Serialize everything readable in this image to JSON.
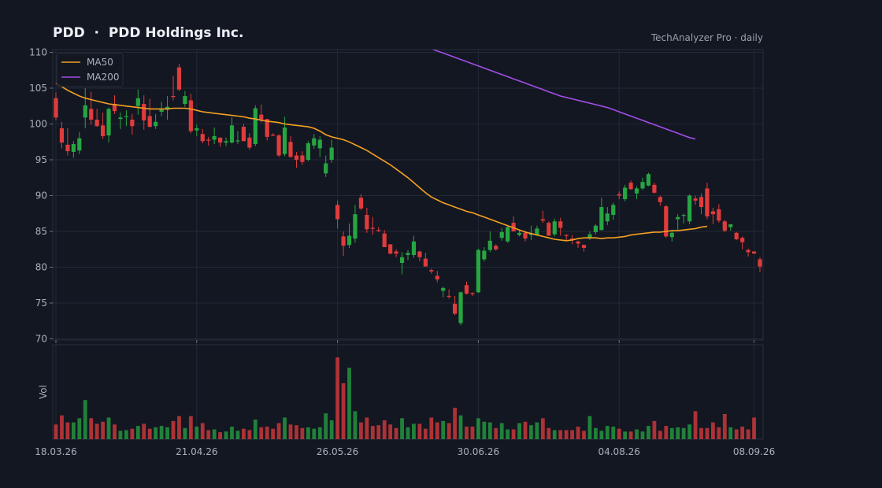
{
  "header": {
    "title": "PDD  ·  PDD Holdings Inc.",
    "source": "TechAnalyzer Pro · daily"
  },
  "chart_data": {
    "type": "candlestick",
    "ticker": "PDD",
    "company": "PDD Holdings Inc.",
    "price_ylim": [
      70,
      110
    ],
    "price_ticks": [
      70,
      75,
      80,
      85,
      90,
      95,
      100,
      105,
      110
    ],
    "x_tick_labels": [
      "18.03.26",
      "21.04.26",
      "26.05.26",
      "30.06.26",
      "04.08.26",
      "08.09.26"
    ],
    "x_tick_index": [
      0,
      24,
      48,
      72,
      96,
      119
    ],
    "volume_label": "Vol",
    "grid": true,
    "legend_position": "top-left",
    "colors": {
      "up": "#26a641",
      "down": "#e03c3c",
      "ma50": "#f5a021",
      "ma200": "#a24ee8",
      "background": "#131722",
      "grid": "#232838"
    },
    "legend": [
      {
        "name": "MA50",
        "color": "#f5a021"
      },
      {
        "name": "MA200",
        "color": "#a24ee8"
      }
    ],
    "ohlc": [
      [
        103.6,
        104.4,
        100.5,
        100.9
      ],
      [
        99.4,
        100.3,
        96.6,
        97.4
      ],
      [
        97.1,
        99.4,
        95.6,
        96.2
      ],
      [
        96.1,
        97.6,
        95.3,
        97.2
      ],
      [
        96.3,
        98.9,
        95.8,
        98.0
      ],
      [
        100.9,
        105.0,
        99.4,
        102.6
      ],
      [
        102.1,
        104.5,
        99.9,
        100.6
      ],
      [
        100.6,
        102.1,
        99.6,
        99.7
      ],
      [
        99.8,
        101.6,
        97.9,
        98.3
      ],
      [
        98.4,
        102.3,
        97.4,
        102.1
      ],
      [
        102.8,
        104.0,
        101.4,
        101.8
      ],
      [
        100.7,
        101.6,
        99.3,
        100.9
      ],
      [
        101.0,
        101.9,
        99.7,
        101.1
      ],
      [
        100.6,
        101.4,
        98.5,
        99.7
      ],
      [
        102.5,
        104.8,
        101.3,
        103.6
      ],
      [
        102.8,
        104.0,
        99.2,
        100.5
      ],
      [
        101.1,
        103.5,
        99.5,
        99.6
      ],
      [
        99.7,
        101.4,
        99.3,
        100.3
      ],
      [
        101.7,
        103.1,
        101.1,
        102.0
      ],
      [
        102.0,
        103.9,
        100.6,
        102.4
      ],
      [
        103.9,
        106.7,
        103.3,
        103.8
      ],
      [
        107.9,
        108.4,
        104.6,
        104.8
      ],
      [
        102.8,
        104.6,
        102.4,
        103.9
      ],
      [
        103.3,
        104.2,
        98.7,
        99.0
      ],
      [
        99.1,
        99.9,
        98.3,
        99.4
      ],
      [
        98.6,
        99.3,
        97.3,
        97.6
      ],
      [
        97.8,
        98.2,
        97.0,
        97.7
      ],
      [
        97.8,
        99.5,
        97.2,
        98.3
      ],
      [
        98.1,
        98.1,
        96.8,
        97.4
      ],
      [
        97.4,
        98.1,
        96.9,
        97.6
      ],
      [
        97.4,
        100.9,
        97.3,
        99.8
      ],
      [
        97.7,
        99.0,
        97.2,
        97.7
      ],
      [
        99.6,
        100.0,
        97.6,
        97.6
      ],
      [
        98.1,
        98.7,
        96.4,
        96.7
      ],
      [
        97.2,
        102.6,
        96.9,
        102.2
      ],
      [
        101.3,
        102.7,
        100.2,
        100.6
      ],
      [
        100.7,
        100.7,
        97.7,
        98.2
      ],
      [
        98.5,
        98.7,
        98.3,
        98.4
      ],
      [
        98.4,
        98.6,
        95.4,
        95.6
      ],
      [
        95.8,
        101.0,
        95.5,
        99.5
      ],
      [
        97.5,
        98.3,
        95.3,
        95.4
      ],
      [
        95.6,
        96.1,
        93.9,
        95.0
      ],
      [
        95.6,
        96.2,
        94.3,
        94.7
      ],
      [
        95.0,
        97.6,
        94.8,
        97.3
      ],
      [
        97.0,
        98.6,
        96.5,
        98.0
      ],
      [
        96.6,
        98.3,
        95.4,
        97.8
      ],
      [
        93.1,
        95.6,
        92.6,
        94.5
      ],
      [
        95.0,
        97.8,
        94.6,
        96.7
      ],
      [
        88.7,
        89.3,
        85.4,
        86.7
      ],
      [
        84.3,
        85.0,
        81.6,
        83.0
      ],
      [
        83.1,
        86.1,
        82.7,
        84.4
      ],
      [
        84.0,
        88.7,
        83.4,
        87.4
      ],
      [
        89.7,
        90.2,
        88.0,
        88.2
      ],
      [
        87.3,
        88.3,
        84.8,
        85.3
      ],
      [
        85.5,
        87.0,
        84.5,
        85.4
      ],
      [
        85.2,
        85.6,
        84.9,
        85.1
      ],
      [
        84.7,
        85.2,
        82.8,
        82.8
      ],
      [
        83.2,
        83.2,
        81.8,
        81.9
      ],
      [
        82.2,
        82.5,
        81.4,
        81.9
      ],
      [
        80.6,
        82.1,
        79.0,
        81.4
      ],
      [
        81.7,
        82.4,
        81.0,
        82.0
      ],
      [
        81.7,
        84.4,
        81.3,
        83.6
      ],
      [
        82.2,
        82.3,
        80.8,
        81.4
      ],
      [
        81.2,
        82.0,
        80.1,
        80.1
      ],
      [
        79.6,
        79.8,
        79.1,
        79.4
      ],
      [
        78.8,
        79.5,
        77.9,
        78.3
      ],
      [
        76.7,
        77.3,
        75.8,
        77.1
      ],
      [
        76.0,
        76.9,
        75.6,
        75.9
      ],
      [
        74.9,
        76.0,
        73.3,
        73.5
      ],
      [
        72.2,
        76.6,
        71.9,
        76.5
      ],
      [
        77.5,
        78.0,
        76.2,
        76.3
      ],
      [
        76.4,
        76.5,
        76.0,
        76.3
      ],
      [
        76.5,
        82.6,
        76.4,
        82.4
      ],
      [
        81.1,
        82.8,
        80.8,
        82.3
      ],
      [
        82.4,
        85.0,
        82.1,
        83.7
      ],
      [
        83.0,
        83.2,
        82.3,
        82.5
      ],
      [
        84.1,
        85.5,
        83.7,
        84.9
      ],
      [
        83.6,
        85.7,
        83.4,
        85.6
      ],
      [
        86.2,
        87.1,
        85.3,
        85.0
      ],
      [
        84.5,
        85.1,
        84.3,
        84.8
      ],
      [
        84.8,
        85.1,
        83.6,
        84.0
      ],
      [
        84.5,
        85.8,
        83.8,
        84.7
      ],
      [
        84.5,
        85.8,
        84.4,
        85.4
      ],
      [
        86.7,
        87.9,
        86.2,
        86.5
      ],
      [
        86.2,
        86.4,
        84.6,
        84.4
      ],
      [
        84.6,
        86.8,
        84.3,
        86.4
      ],
      [
        86.4,
        86.9,
        84.4,
        85.5
      ],
      [
        84.5,
        84.6,
        83.6,
        84.4
      ],
      [
        84.0,
        84.5,
        83.2,
        83.8
      ],
      [
        83.6,
        83.7,
        82.7,
        83.3
      ],
      [
        83.1,
        83.2,
        82.2,
        82.7
      ],
      [
        84.0,
        85.0,
        83.8,
        84.6
      ],
      [
        84.9,
        86.0,
        84.6,
        85.8
      ],
      [
        85.2,
        89.7,
        85.1,
        88.4
      ],
      [
        86.4,
        88.4,
        85.9,
        87.5
      ],
      [
        87.3,
        89.0,
        86.6,
        88.7
      ],
      [
        90.2,
        90.6,
        89.5,
        90.0
      ],
      [
        89.5,
        91.5,
        89.2,
        91.1
      ],
      [
        91.8,
        92.1,
        90.8,
        90.9
      ],
      [
        90.3,
        91.3,
        89.5,
        91.0
      ],
      [
        91.0,
        92.5,
        90.8,
        91.9
      ],
      [
        91.4,
        93.2,
        91.3,
        93.0
      ],
      [
        91.5,
        91.8,
        90.3,
        90.4
      ],
      [
        89.8,
        90.0,
        88.6,
        89.1
      ],
      [
        88.5,
        88.7,
        84.1,
        84.3
      ],
      [
        84.2,
        85.1,
        83.6,
        84.8
      ],
      [
        86.7,
        87.4,
        85.2,
        87.0
      ],
      [
        87.2,
        87.5,
        86.1,
        87.3
      ],
      [
        86.4,
        90.2,
        86.0,
        90.0
      ],
      [
        89.6,
        90.0,
        88.7,
        89.3
      ],
      [
        89.8,
        90.3,
        87.4,
        88.4
      ],
      [
        91.0,
        91.8,
        86.7,
        87.1
      ],
      [
        87.8,
        88.3,
        86.0,
        87.4
      ],
      [
        88.1,
        88.8,
        86.2,
        86.5
      ],
      [
        86.4,
        86.6,
        84.9,
        85.1
      ],
      [
        85.6,
        86.0,
        85.1,
        86.0
      ],
      [
        84.8,
        84.9,
        83.8,
        83.9
      ],
      [
        84.1,
        84.3,
        82.5,
        83.5
      ],
      [
        82.4,
        82.6,
        81.5,
        82.1
      ],
      [
        82.2,
        82.2,
        81.9,
        81.9
      ],
      [
        81.1,
        81.4,
        79.3,
        80.1
      ]
    ],
    "ma50": [
      105.7,
      105.2,
      104.7,
      104.3,
      103.9,
      103.6,
      103.4,
      103.2,
      103.0,
      102.8,
      102.7,
      102.6,
      102.5,
      102.4,
      102.3,
      102.2,
      102.1,
      102.1,
      102.1,
      102.1,
      102.2,
      102.2,
      102.2,
      102.1,
      101.9,
      101.7,
      101.6,
      101.5,
      101.4,
      101.3,
      101.2,
      101.1,
      101.0,
      100.8,
      100.7,
      100.5,
      100.4,
      100.3,
      100.2,
      100.0,
      99.9,
      99.8,
      99.7,
      99.6,
      99.4,
      99.0,
      98.5,
      98.2,
      98.0,
      97.8,
      97.5,
      97.1,
      96.7,
      96.3,
      95.8,
      95.3,
      94.8,
      94.3,
      93.7,
      93.1,
      92.5,
      91.8,
      91.1,
      90.4,
      89.8,
      89.4,
      89.0,
      88.7,
      88.4,
      88.1,
      87.8,
      87.6,
      87.3,
      87.0,
      86.7,
      86.4,
      86.1,
      85.8,
      85.5,
      85.2,
      84.9,
      84.7,
      84.5,
      84.3,
      84.1,
      83.9,
      83.8,
      83.7,
      83.8,
      84.0,
      84.1,
      84.1,
      84.1,
      84.0,
      84.1,
      84.1,
      84.2,
      84.3,
      84.5,
      84.6,
      84.7,
      84.8,
      84.9,
      84.9,
      85.0,
      85.1,
      85.1,
      85.2,
      85.3,
      85.4,
      85.6,
      85.7
    ],
    "ma200_start_index": 63,
    "ma200": [
      110.8,
      110.5,
      110.2,
      109.9,
      109.6,
      109.3,
      109.0,
      108.7,
      108.4,
      108.1,
      107.8,
      107.5,
      107.2,
      106.9,
      106.6,
      106.3,
      106.0,
      105.7,
      105.4,
      105.1,
      104.8,
      104.5,
      104.2,
      103.9,
      103.7,
      103.5,
      103.3,
      103.1,
      102.9,
      102.7,
      102.5,
      102.3,
      102.0,
      101.7,
      101.4,
      101.1,
      100.8,
      100.5,
      100.2,
      99.9,
      99.6,
      99.3,
      99.0,
      98.7,
      98.4,
      98.1,
      97.9
    ],
    "volume": [
      2.1,
      3.4,
      2.4,
      2.4,
      3.0,
      5.6,
      3.0,
      2.2,
      2.5,
      3.1,
      2.1,
      1.2,
      1.3,
      1.5,
      1.9,
      2.2,
      1.5,
      1.7,
      1.9,
      1.7,
      2.6,
      3.3,
      1.6,
      3.3,
      1.8,
      2.3,
      1.3,
      1.4,
      1.0,
      1.1,
      1.8,
      1.2,
      1.5,
      1.3,
      2.8,
      1.7,
      1.8,
      1.5,
      2.3,
      3.1,
      2.1,
      2.0,
      1.6,
      1.7,
      1.5,
      1.7,
      3.7,
      2.7,
      11.7,
      8.0,
      10.2,
      4.0,
      2.4,
      3.1,
      1.9,
      2.0,
      2.7,
      2.1,
      1.6,
      3.0,
      1.7,
      2.2,
      2.2,
      1.5,
      3.1,
      2.4,
      2.6,
      2.3,
      4.5,
      3.4,
      1.8,
      1.8,
      3.0,
      2.5,
      2.4,
      1.6,
      2.3,
      1.4,
      1.4,
      2.3,
      2.5,
      2.0,
      2.4,
      3.0,
      1.6,
      1.3,
      1.3,
      1.3,
      1.3,
      1.8,
      1.2,
      3.3,
      1.6,
      1.2,
      1.9,
      1.8,
      1.5,
      1.1,
      1.1,
      1.4,
      1.1,
      1.9,
      2.6,
      1.2,
      1.9,
      1.6,
      1.7,
      1.6,
      2.1,
      4.0,
      1.6,
      1.6,
      2.4,
      1.7,
      3.6,
      1.7,
      1.4,
      1.8,
      1.4,
      3.1
    ]
  }
}
